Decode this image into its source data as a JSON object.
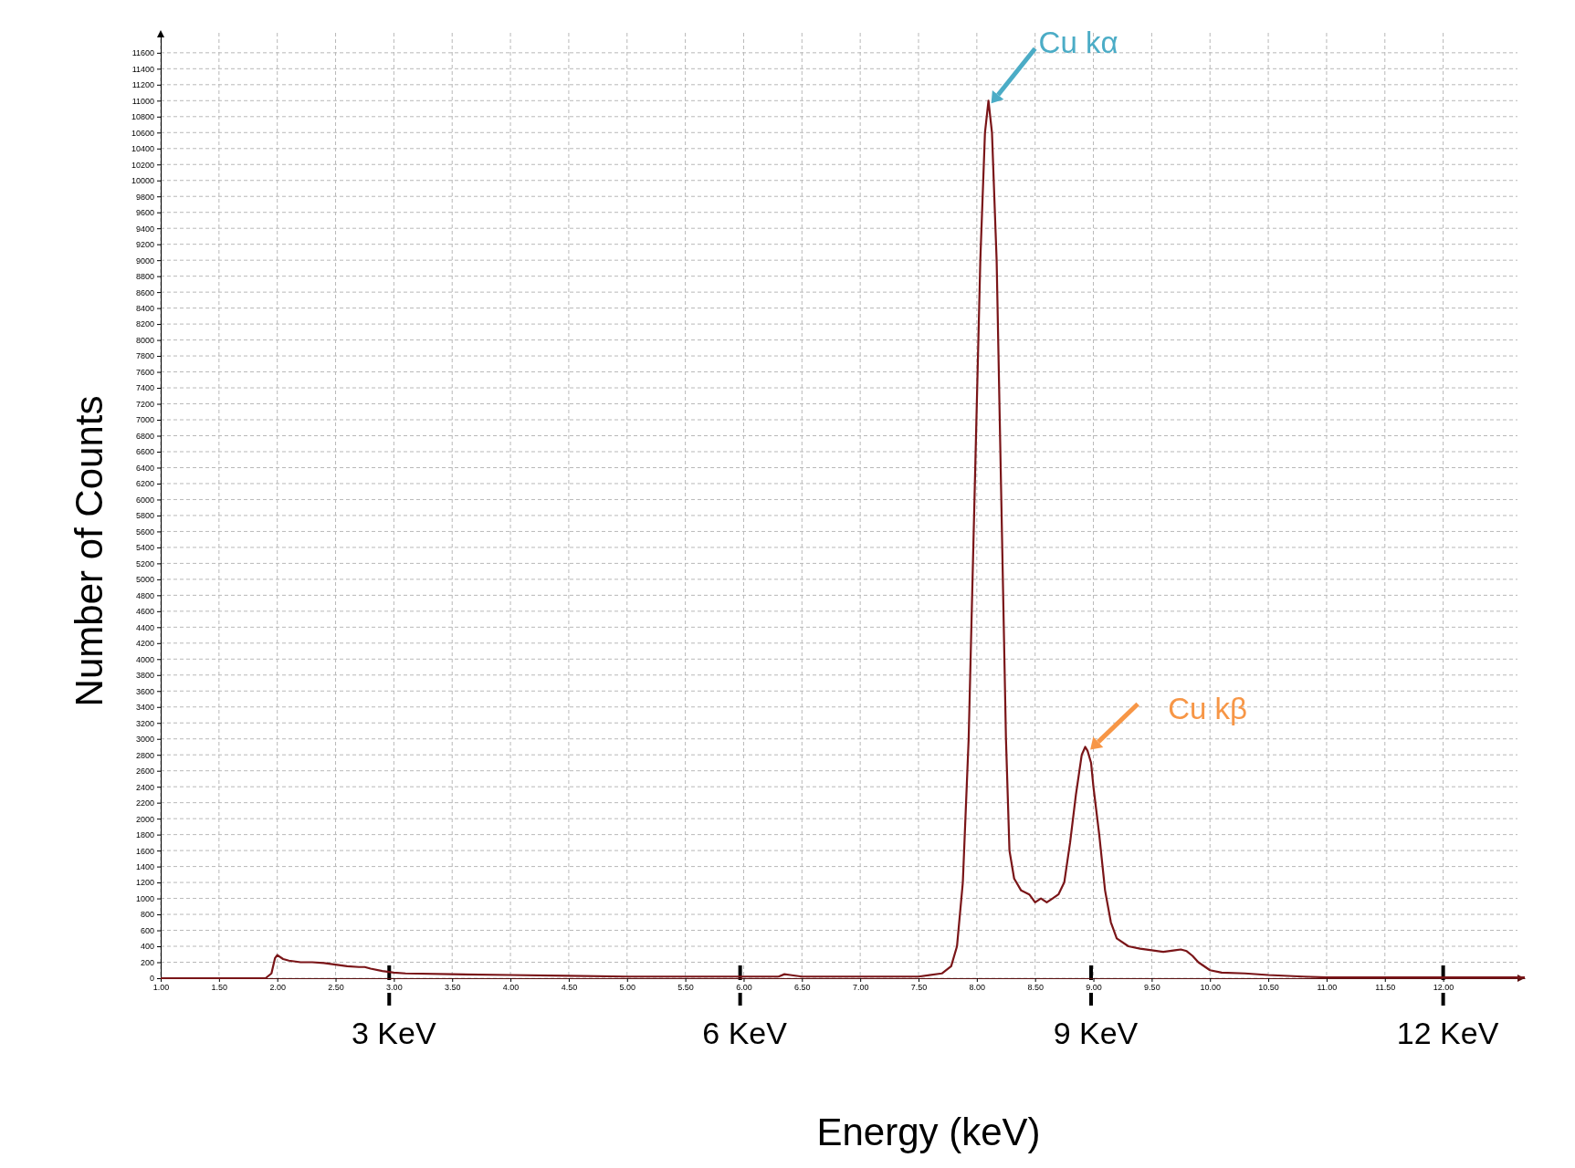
{
  "chart_data": {
    "type": "line",
    "xlabel": "Energy (keV)",
    "ylabel": "Number of Counts",
    "annotations": [
      {
        "text": "Cu kα",
        "x": 8.1,
        "y": 11000
      },
      {
        "text": "Cu kβ",
        "x": 8.95,
        "y": 2900
      }
    ],
    "xlim": [
      1,
      12.7
    ],
    "ylim": [
      0,
      11850
    ],
    "xticks": [
      {
        "value": 1,
        "label": "1.00"
      },
      {
        "value": 1.5,
        "label": "1.50"
      },
      {
        "value": 2,
        "label": "2.00"
      },
      {
        "value": 2.5,
        "label": "2.50"
      },
      {
        "value": 3,
        "label": "3.00"
      },
      {
        "value": 3.5,
        "label": "3.50"
      },
      {
        "value": 4,
        "label": "4.00"
      },
      {
        "value": 4.5,
        "label": "4.50"
      },
      {
        "value": 5,
        "label": "5.00"
      },
      {
        "value": 5.5,
        "label": "5.50"
      },
      {
        "value": 6,
        "label": "6.00"
      },
      {
        "value": 6.5,
        "label": "6.50"
      },
      {
        "value": 7,
        "label": "7.00"
      },
      {
        "value": 7.5,
        "label": "7.50"
      },
      {
        "value": 8,
        "label": "8.00"
      },
      {
        "value": 8.5,
        "label": "8.50"
      },
      {
        "value": 9,
        "label": "9.00"
      },
      {
        "value": 9.5,
        "label": "9.50"
      },
      {
        "value": 10,
        "label": "10.00"
      },
      {
        "value": 10.5,
        "label": "10.50"
      },
      {
        "value": 11,
        "label": "11.00"
      },
      {
        "value": 11.5,
        "label": "11.50"
      },
      {
        "value": 12,
        "label": "12.00"
      }
    ],
    "yticks": [
      0,
      200,
      400,
      600,
      800,
      1000,
      1200,
      1400,
      1600,
      1800,
      2000,
      2200,
      2400,
      2600,
      2800,
      3000,
      3200,
      3400,
      3600,
      3800,
      4000,
      4200,
      4400,
      4600,
      4800,
      5000,
      5200,
      5400,
      5600,
      5800,
      6000,
      6200,
      6400,
      6600,
      6800,
      7000,
      7200,
      7400,
      7600,
      7800,
      8000,
      8200,
      8400,
      8600,
      8800,
      9000,
      9200,
      9400,
      9600,
      9800,
      10000,
      10200,
      10400,
      10600,
      10800,
      11000,
      11200,
      11400,
      11600
    ],
    "ref_lines": [
      {
        "axis": "x",
        "value": 2.96,
        "label": "3 KeV",
        "color": "#000000"
      },
      {
        "axis": "x",
        "value": 5.97,
        "label": "6 KeV",
        "color": "#000000"
      },
      {
        "axis": "x",
        "value": 8.98,
        "label": "9 KeV",
        "color": "#000000"
      },
      {
        "axis": "x",
        "value": 12.0,
        "label": "12 KeV",
        "color": "#000000"
      }
    ],
    "grid": true,
    "marker": "none",
    "line_style": "solid",
    "series": [
      {
        "color": "#7a1518",
        "x": [
          1.0,
          1.9,
          1.95,
          1.98,
          2.0,
          2.05,
          2.1,
          2.2,
          2.3,
          2.4,
          2.5,
          2.6,
          2.7,
          2.75,
          2.8,
          2.9,
          3.0,
          3.1,
          3.5,
          4.0,
          4.5,
          5.0,
          5.5,
          6.0,
          6.3,
          6.35,
          6.4,
          6.5,
          7.0,
          7.5,
          7.7,
          7.78,
          7.83,
          7.88,
          7.93,
          7.98,
          8.03,
          8.07,
          8.1,
          8.13,
          8.17,
          8.21,
          8.25,
          8.28,
          8.32,
          8.38,
          8.45,
          8.5,
          8.55,
          8.6,
          8.65,
          8.7,
          8.75,
          8.8,
          8.85,
          8.9,
          8.93,
          8.95,
          8.98,
          9.0,
          9.05,
          9.1,
          9.15,
          9.2,
          9.3,
          9.4,
          9.5,
          9.6,
          9.7,
          9.75,
          9.8,
          9.85,
          9.9,
          10.0,
          10.1,
          10.3,
          10.5,
          10.8,
          11.0,
          12.0,
          12.7
        ],
        "values": [
          0,
          0,
          60,
          250,
          290,
          240,
          220,
          200,
          200,
          190,
          170,
          150,
          140,
          140,
          120,
          90,
          70,
          60,
          50,
          40,
          30,
          20,
          20,
          20,
          20,
          50,
          40,
          20,
          20,
          20,
          60,
          150,
          400,
          1200,
          3000,
          6000,
          9000,
          10600,
          11000,
          10600,
          9000,
          6000,
          3000,
          1600,
          1250,
          1100,
          1050,
          950,
          1000,
          950,
          1000,
          1050,
          1200,
          1700,
          2300,
          2800,
          2900,
          2850,
          2700,
          2400,
          1800,
          1100,
          700,
          500,
          400,
          370,
          350,
          330,
          350,
          360,
          340,
          280,
          200,
          100,
          70,
          60,
          40,
          20,
          10,
          10,
          10
        ]
      }
    ]
  }
}
